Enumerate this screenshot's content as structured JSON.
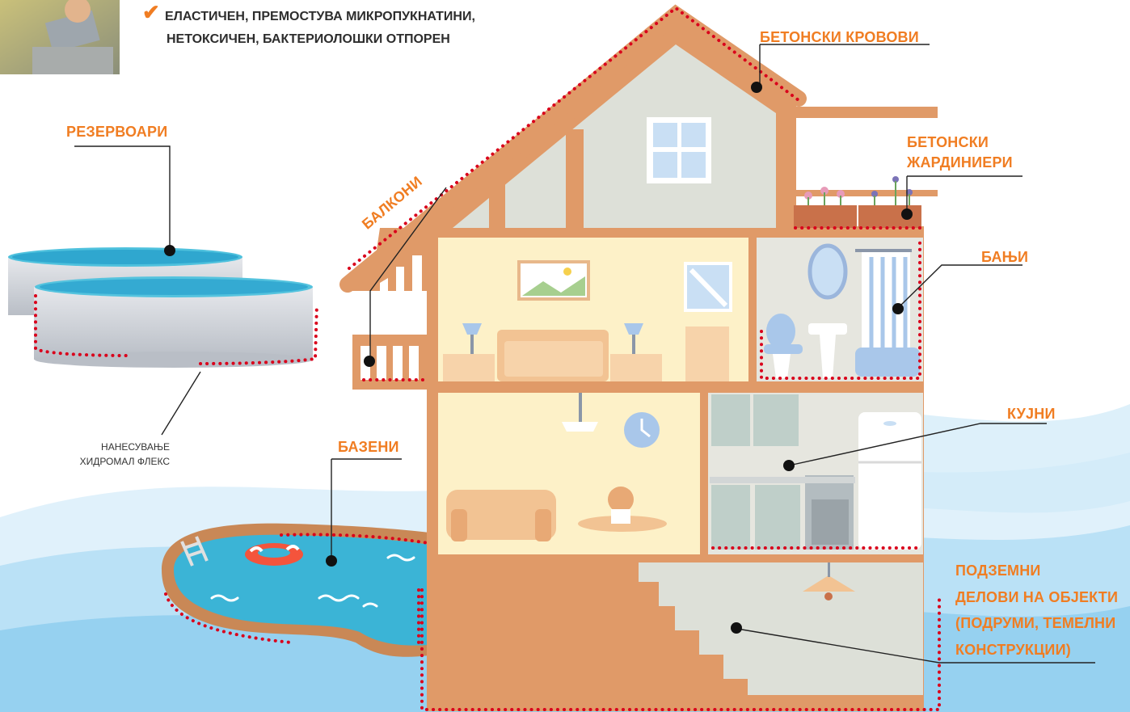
{
  "header": {
    "check_icon": "checkmark-icon",
    "line1": "ЕЛАСТИЧЕН, ПРЕМОСТУВА МИКРОПУКНАТИНИ,",
    "line2": "НЕТОКСИЧЕН, БАКТЕРИОЛОШКИ ОТПОРЕН"
  },
  "labels": {
    "roofs": "БЕТОНСКИ КРОВОВИ",
    "planters_1": "БЕТОНСКИ",
    "planters_2": "ЖАРДИНИЕРИ",
    "bathrooms": "БАЊИ",
    "kitchens": "КУЈНИ",
    "underground_1": "ПОДЗЕМНИ",
    "underground_2": "ДЕЛОВИ НА ОБЈЕКТИ",
    "underground_3": "(ПОДРУМИ, ТЕМЕЛНИ",
    "underground_4": "КОНСТРУКЦИИ)",
    "tanks": "РЕЗЕРВОАРИ",
    "balconies": "БАЛКОНИ",
    "pools": "БАЗЕНИ"
  },
  "note": {
    "line1": "НАНЕСУВАЊЕ",
    "line2": "ХИДРОМАЛ ФЛЕКС"
  },
  "colors": {
    "accent": "#f07d22",
    "wall": "#e09a68",
    "room_yellow": "#fdf1c8",
    "room_grey": "#e6e6df",
    "water": "#3bb4d6",
    "dots": "#d9001b"
  }
}
